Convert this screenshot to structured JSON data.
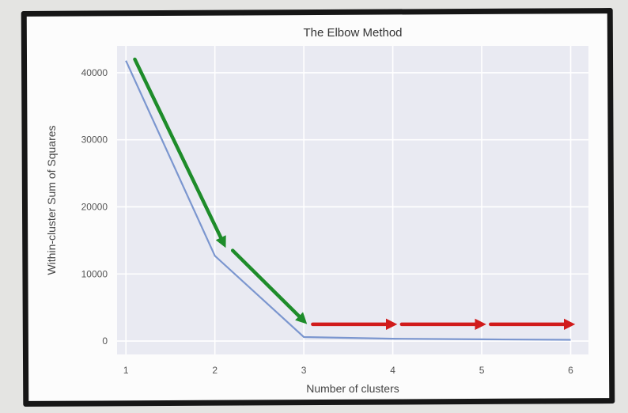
{
  "chart_data": {
    "type": "line",
    "title": "The Elbow Method",
    "xlabel": "Number of clusters",
    "ylabel": "Within-cluster Sum of Squares",
    "x": [
      1,
      2,
      3,
      4,
      5,
      6
    ],
    "series": [
      {
        "values": [
          41800,
          12700,
          600,
          350,
          250,
          180
        ]
      }
    ],
    "xlim": [
      0.9,
      6.2
    ],
    "ylim": [
      -2000,
      44000
    ],
    "xticks": [
      1,
      2,
      3,
      4,
      5,
      6
    ],
    "yticks": [
      0,
      10000,
      20000,
      30000,
      40000
    ],
    "grid": true,
    "line_color": "#7b96cf",
    "plot_background": "#e9eaf2",
    "annotations": {
      "green_arrows": [
        {
          "from": [
            1.1,
            42000
          ],
          "to": [
            2.1,
            14500
          ]
        },
        {
          "from": [
            2.2,
            13500
          ],
          "to": [
            3.0,
            3000
          ]
        }
      ],
      "red_arrows": [
        {
          "from": [
            3.1,
            2500
          ],
          "to": [
            4.0,
            2500
          ]
        },
        {
          "from": [
            4.1,
            2500
          ],
          "to": [
            5.0,
            2500
          ]
        },
        {
          "from": [
            5.1,
            2500
          ],
          "to": [
            6.0,
            2500
          ]
        }
      ],
      "green_color": "#1e8c2a",
      "red_color": "#d11b1b"
    }
  }
}
